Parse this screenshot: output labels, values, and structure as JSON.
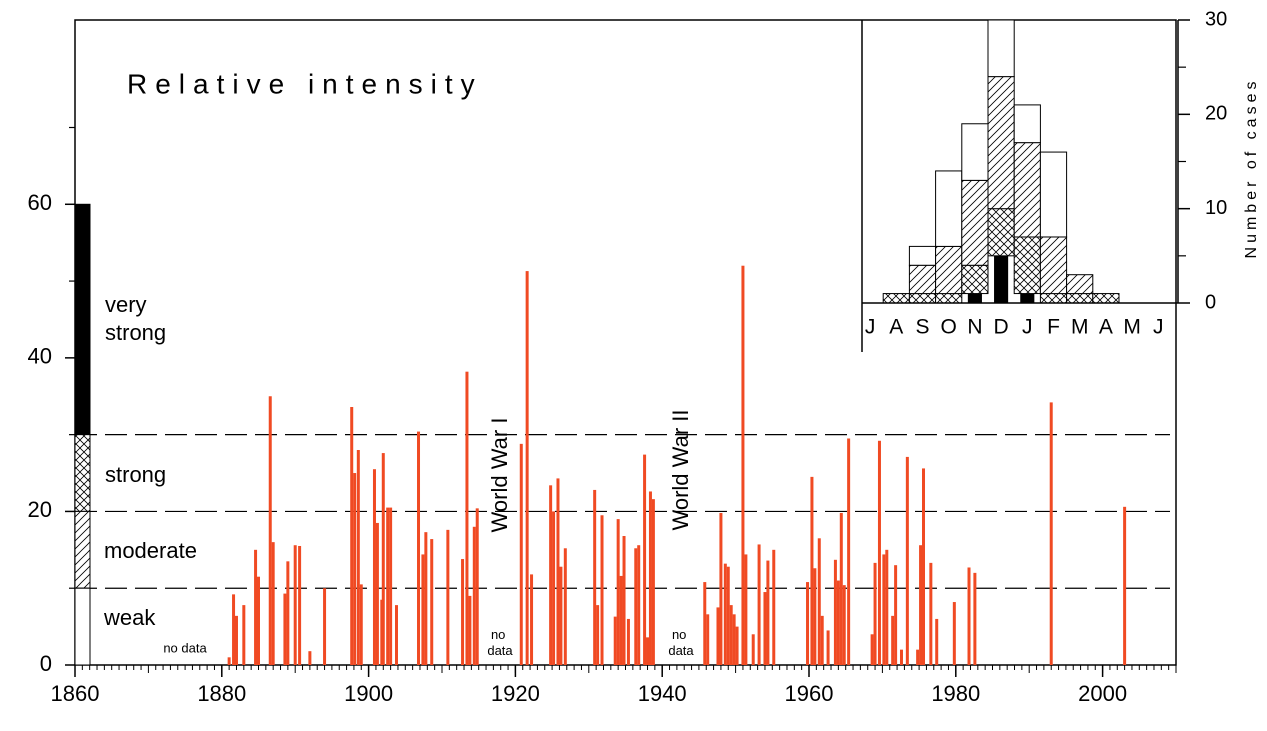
{
  "chart_data": {
    "type": "bar",
    "title": "Relative intensity",
    "color": "#f04a23",
    "xlim": [
      1860,
      2010
    ],
    "xticks": [
      1860,
      1880,
      1900,
      1920,
      1940,
      1960,
      1980,
      2000
    ],
    "ylim": [
      0,
      84
    ],
    "yticks": [
      0,
      20,
      40,
      60
    ],
    "yminorticks": [
      10,
      30,
      50,
      70
    ],
    "x": [
      1881.0,
      1881.6,
      1882.0,
      1883.0,
      1884.6,
      1885.0,
      1886.6,
      1887.0,
      1888.6,
      1889.0,
      1890.0,
      1890.6,
      1892.0,
      1894.0,
      1897.7,
      1898.1,
      1898.6,
      1899.0,
      1900.8,
      1901.2,
      1901.8,
      1902.0,
      1902.6,
      1903.0,
      1903.8,
      1906.8,
      1907.4,
      1907.8,
      1908.6,
      1910.8,
      1912.8,
      1913.4,
      1913.8,
      1914.4,
      1914.8,
      1920.8,
      1921.6,
      1922.2,
      1924.8,
      1925.2,
      1925.8,
      1926.2,
      1926.8,
      1930.8,
      1931.2,
      1931.8,
      1933.6,
      1934.0,
      1934.4,
      1934.8,
      1935.4,
      1936.4,
      1936.8,
      1937.6,
      1938.0,
      1938.4,
      1938.8,
      1945.8,
      1946.2,
      1947.6,
      1948.0,
      1948.6,
      1949.0,
      1949.4,
      1949.8,
      1950.2,
      1951.0,
      1951.4,
      1952.4,
      1953.2,
      1954.0,
      1954.4,
      1955.2,
      1959.8,
      1960.4,
      1960.8,
      1961.4,
      1961.8,
      1962.6,
      1963.6,
      1964.0,
      1964.4,
      1964.8,
      1965.4,
      1968.6,
      1969.0,
      1969.6,
      1970.2,
      1970.6,
      1971.4,
      1971.8,
      1972.6,
      1973.4,
      1974.8,
      1975.2,
      1975.6,
      1976.6,
      1977.4,
      1979.8,
      1981.8,
      1982.6,
      1993.0,
      2003.0
    ],
    "values": [
      1,
      9.2,
      6.4,
      7.8,
      15,
      11.5,
      35,
      16,
      9.3,
      13.5,
      15.6,
      15.5,
      1.8,
      10,
      33.6,
      25,
      28,
      10.5,
      25.5,
      18.5,
      8.5,
      27.6,
      20.5,
      20.5,
      7.8,
      30.4,
      14.4,
      17.3,
      16.4,
      17.6,
      13.8,
      38.2,
      9,
      18,
      20.4,
      28.8,
      51.3,
      11.8,
      23.4,
      20,
      24.3,
      12.8,
      15.2,
      22.8,
      7.8,
      19.5,
      6.3,
      19,
      11.6,
      16.8,
      6,
      15.2,
      15.6,
      27.4,
      3.6,
      22.6,
      21.6,
      10.8,
      6.6,
      7.5,
      19.8,
      13.2,
      12.8,
      7.8,
      6.6,
      5,
      52,
      14.4,
      4,
      15.7,
      9.5,
      13.6,
      15,
      10.8,
      24.5,
      12.6,
      16.5,
      6.4,
      4.5,
      13.7,
      11,
      19.8,
      10.4,
      29.5,
      4,
      13.3,
      29.2,
      14.4,
      15,
      6.4,
      13,
      2,
      27.1,
      2,
      15.6,
      25.6,
      13.3,
      6,
      8.2,
      12.7,
      12,
      34.2,
      20.6
    ],
    "annotations": [
      "no data",
      "no data",
      "no data",
      "World War I",
      "World War II"
    ],
    "intensity_classes": [
      {
        "label": "very strong",
        "from": 30,
        "to": 60,
        "pattern": "solid",
        "monthly_cases": [
          0,
          0,
          0,
          0,
          1,
          5,
          1,
          0,
          0,
          0,
          0,
          0
        ]
      },
      {
        "label": "strong",
        "from": 20,
        "to": 30,
        "pattern": "crosshatch",
        "monthly_cases": [
          0,
          1,
          1,
          1,
          3,
          5,
          6,
          1,
          1,
          1,
          0,
          0
        ]
      },
      {
        "label": "moderate",
        "from": 10,
        "to": 20,
        "pattern": "hatch",
        "monthly_cases": [
          0,
          0,
          3,
          5,
          9,
          14,
          10,
          6,
          2,
          0,
          0,
          0
        ]
      },
      {
        "label": "weak",
        "from": 0,
        "to": 10,
        "pattern": "none",
        "monthly_cases": [
          0,
          0,
          2,
          8,
          6,
          6,
          4,
          9,
          0,
          0,
          0,
          0
        ]
      }
    ],
    "inset": {
      "type": "bar",
      "stacked": true,
      "ylabel": "Number of cases",
      "categories": [
        "J",
        "A",
        "S",
        "O",
        "N",
        "D",
        "J",
        "F",
        "M",
        "A",
        "M",
        "J"
      ],
      "ylim": [
        0,
        30
      ],
      "yticks": [
        0,
        10,
        20,
        30
      ],
      "yminorticks": [
        5,
        15,
        25
      ]
    }
  }
}
